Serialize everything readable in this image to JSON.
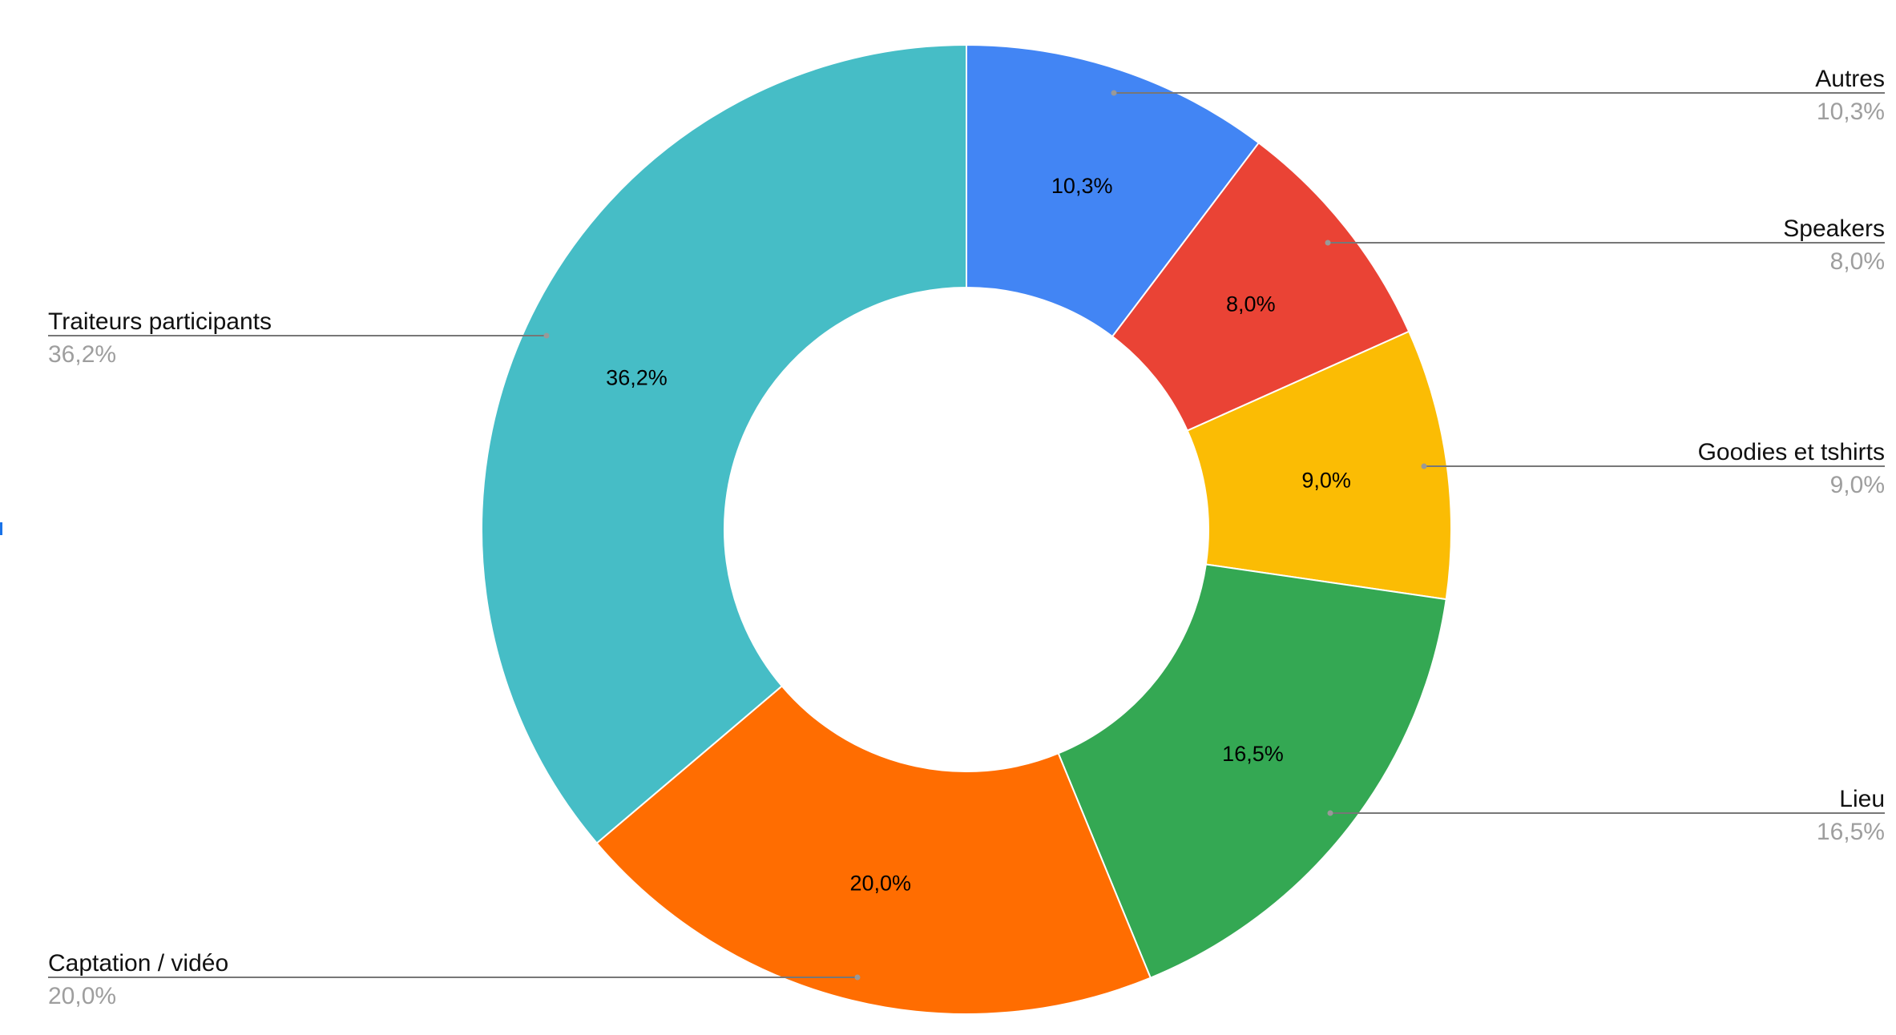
{
  "chart_data": {
    "type": "pie",
    "donut": true,
    "title": "",
    "legend": "labeled lines beside slices",
    "slices": [
      {
        "label": "Autres",
        "value": 10.3,
        "display": "10,3%",
        "color": "#4285f4"
      },
      {
        "label": "Speakers",
        "value": 8.0,
        "display": "8,0%",
        "color": "#ea4335"
      },
      {
        "label": "Goodies et tshirts",
        "value": 9.0,
        "display": "9,0%",
        "color": "#fbbc04"
      },
      {
        "label": "Lieu",
        "value": 16.5,
        "display": "16,5%",
        "color": "#34a853"
      },
      {
        "label": "Captation / vidéo",
        "value": 20.0,
        "display": "20,0%",
        "color": "#ff6d01"
      },
      {
        "label": "Traiteurs participants",
        "value": 36.2,
        "display": "36,2%",
        "color": "#46bdc6"
      }
    ]
  }
}
